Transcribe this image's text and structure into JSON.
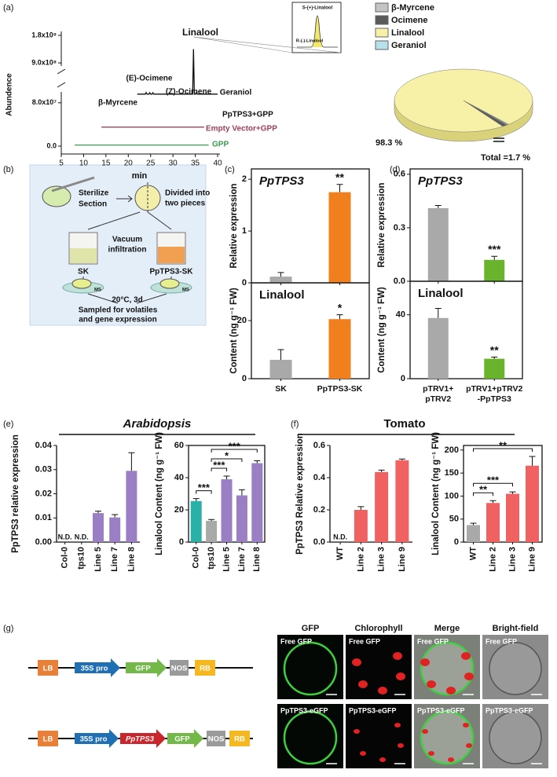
{
  "panel_labels": [
    "(a)",
    "(b)",
    "(c)",
    "(d)",
    "(e)",
    "(f)",
    "(g)"
  ],
  "headings": [
    "Arabidopsis",
    "Tomato"
  ],
  "chart_data": [
    {
      "type": "line",
      "ylabel": "Abundence",
      "xlabel": "min",
      "xlim": [
        5,
        40
      ],
      "xticks": [
        5,
        10,
        15,
        20,
        25,
        30,
        35,
        40
      ],
      "ylim": [
        0,
        1800000000
      ],
      "ybreak": [
        100000000,
        800000000
      ],
      "yticks": [
        {
          "value": 0,
          "label": "0.0"
        },
        {
          "value": 80000000,
          "label": "8.0x10⁷"
        },
        {
          "value": 900000000,
          "label": "9.0x10⁸"
        },
        {
          "value": 1800000000,
          "label": "1.8x10⁹"
        }
      ],
      "series": [
        {
          "name": "PpTPS3+GPP",
          "color": "#111111",
          "x": [
            22,
            23.8,
            24.0,
            24.2,
            24.6,
            24.8,
            25.0,
            25.3,
            25.5,
            25.7,
            34.4,
            34.6,
            34.8,
            35.1,
            35.3,
            35.5,
            40
          ],
          "values": [
            96000000,
            96000000,
            99000000,
            96000000,
            96000000,
            98500000,
            96000000,
            96000000,
            98500000,
            96000000,
            96000000,
            1350000000,
            96000000,
            96000000,
            99500000,
            96000000,
            96000000
          ]
        },
        {
          "name": "Empty Vector+GPP",
          "color": "#a0405a",
          "x": [
            14,
            37
          ],
          "values": [
            35000000,
            35000000
          ]
        },
        {
          "name": "GPP",
          "color": "#3a9a50",
          "x": [
            8,
            38
          ],
          "values": [
            2000000,
            2000000
          ]
        }
      ],
      "annotations": [
        "β-Myrcene",
        "(E)-Ocimene",
        "(Z)-Ocimene",
        "Linalool",
        "Geraniol"
      ],
      "inset_labels": [
        "S-(+)-Linalool",
        "R-(-)-Linalool"
      ]
    },
    {
      "type": "pie",
      "categories": [
        "β-Myrcene",
        "Ocimene",
        "Linalool",
        "Geraniol"
      ],
      "values": [
        0.3,
        1.2,
        98.3,
        0.2
      ],
      "colors": [
        "#c4c4c4",
        "#5a5a5a",
        "#f6f1a6",
        "#b7e0ea"
      ],
      "value_labels": [
        null,
        null,
        "98.3 %",
        null
      ],
      "annotation": "Total =1.7 %"
    },
    {
      "type": "bar",
      "title": "PpTPS3",
      "ylabel": "Relative expression",
      "values": [
        0.12,
        1.75
      ],
      "errors": [
        0.08,
        0.15
      ],
      "colors": [
        "#a9a9a9",
        "#f07f1e"
      ],
      "ylim": [
        0,
        2.2
      ],
      "yticks": [
        0,
        1,
        2
      ],
      "stars": [
        null,
        "**"
      ]
    },
    {
      "type": "bar",
      "title": "Linalool",
      "ylabel": "Content  (ng g⁻¹ FW)",
      "categories": [
        "SK",
        "PpTPS3-SK"
      ],
      "values": [
        6.5,
        20.5
      ],
      "errors": [
        3.5,
        1.5
      ],
      "colors": [
        "#a9a9a9",
        "#f07f1e"
      ],
      "ylim": [
        0,
        33
      ],
      "yticks": [
        0,
        20
      ],
      "stars": [
        null,
        "*"
      ]
    },
    {
      "type": "bar",
      "title": "PpTPS3",
      "ylabel": "Relative expression",
      "values": [
        0.41,
        0.12
      ],
      "errors": [
        0.015,
        0.02
      ],
      "colors": [
        "#a9a9a9",
        "#6ab42d"
      ],
      "ylim": [
        0,
        0.63
      ],
      "yticks": [
        {
          "value": 0,
          "label": "0.0"
        },
        0.3,
        0.6
      ],
      "stars": [
        null,
        "***"
      ]
    },
    {
      "type": "bar",
      "title": "Linalool",
      "ylabel": "Content  (ng g⁻¹ FW)",
      "categories": [
        "pTRV1+ pTRV2",
        "pTRV1+pTRV2 -PpTPS3"
      ],
      "values": [
        38,
        12.5
      ],
      "errors": [
        6,
        1
      ],
      "colors": [
        "#a9a9a9",
        "#6ab42d"
      ],
      "ylim": [
        0,
        61
      ],
      "yticks": [
        0,
        40
      ],
      "stars": [
        null,
        "**"
      ]
    },
    {
      "type": "bar",
      "ylabel": "PpTPS3 relative expression",
      "categories": [
        "Col-0",
        "tps10",
        "Line 5",
        "Line 7",
        "Line 8"
      ],
      "values": [
        null,
        null,
        0.012,
        0.0102,
        0.0295
      ],
      "errors": [
        null,
        null,
        0.0008,
        0.0012,
        0.0075
      ],
      "value_labels": [
        "N.D.",
        "N.D.",
        null,
        null,
        null
      ],
      "colors": [
        "#9b7fc4",
        "#9b7fc4",
        "#9b7fc4",
        "#9b7fc4",
        "#9b7fc4"
      ],
      "ylim": [
        0,
        0.04
      ],
      "yticks": [
        {
          "value": 0,
          "label": "0.00"
        },
        0.01,
        0.02,
        0.03,
        0.04
      ]
    },
    {
      "type": "bar",
      "ylabel": "Linalool Content (ng g⁻¹ FW)",
      "categories": [
        "Col-0",
        "tps10",
        "Line 5",
        "Line 7",
        "Line 8"
      ],
      "values": [
        25.5,
        13.2,
        39,
        29,
        49
      ],
      "errors": [
        1.5,
        0.8,
        2,
        3.5,
        1.5
      ],
      "colors": [
        "#2bb0a8",
        "#a9a9a9",
        "#9b7fc4",
        "#9b7fc4",
        "#9b7fc4"
      ],
      "ylim": [
        0,
        60
      ],
      "yticks": [
        0,
        20,
        40,
        60
      ],
      "brackets": [
        {
          "pair": [
            0,
            1
          ],
          "label": "***"
        },
        {
          "pair": [
            1,
            2
          ],
          "label": "***"
        },
        {
          "pair": [
            1,
            3
          ],
          "label": "*"
        },
        {
          "pair": [
            1,
            4
          ],
          "label": "***"
        }
      ]
    },
    {
      "type": "bar",
      "ylabel": "PpTPS3 Relative expression",
      "categories": [
        "WT",
        "Line 2",
        "Line 3",
        "Line 9"
      ],
      "values": [
        null,
        0.2,
        0.435,
        0.508
      ],
      "errors": [
        null,
        0.02,
        0.012,
        0.008
      ],
      "value_labels": [
        "N.D.",
        null,
        null,
        null
      ],
      "colors": [
        "#f06262",
        "#f06262",
        "#f06262",
        "#f06262"
      ],
      "ylim": [
        0,
        0.6
      ],
      "yticks": [
        {
          "value": 0,
          "label": "0.0"
        },
        0.2,
        0.4,
        0.6
      ]
    },
    {
      "type": "bar",
      "ylabel": "Linalool Content (ng g⁻¹ FW)",
      "categories": [
        "WT",
        "Line 2",
        "Line 3",
        "Line 9"
      ],
      "values": [
        37,
        85,
        105,
        166
      ],
      "errors": [
        4,
        5,
        4,
        20
      ],
      "colors": [
        "#a9a9a9",
        "#f06262",
        "#f06262",
        "#f06262"
      ],
      "ylim": [
        0,
        210
      ],
      "yticks": [
        0,
        50,
        100,
        150,
        200
      ],
      "brackets": [
        {
          "pair": [
            0,
            1
          ],
          "label": "**"
        },
        {
          "pair": [
            0,
            2
          ],
          "label": "***"
        },
        {
          "pair": [
            0,
            3
          ],
          "label": "**"
        }
      ]
    }
  ],
  "diagram_b": {
    "sterilize": "Sterilize",
    "section": "Section",
    "divided": [
      "Divided into",
      "two pieces"
    ],
    "vacuum": [
      "Vacuum",
      "infiltration"
    ],
    "left": "SK",
    "right": "PpTPS3-SK",
    "medium": "MS",
    "condition": "20°C, 3d",
    "sampled": [
      "Sampled for volatiles",
      "and gene expression"
    ]
  },
  "constructs": [
    [
      "LB",
      "35S pro",
      "GFP",
      "NOS",
      "RB"
    ],
    [
      "LB",
      "35S pro",
      "PpTPS3",
      "GFP",
      "NOS",
      "RB"
    ]
  ],
  "microscopy": {
    "columns": [
      "GFP",
      "Chlorophyll",
      "Merge",
      "Bright-field"
    ],
    "rows": [
      "Free GFP",
      "PpTPS3-eGFP"
    ]
  }
}
